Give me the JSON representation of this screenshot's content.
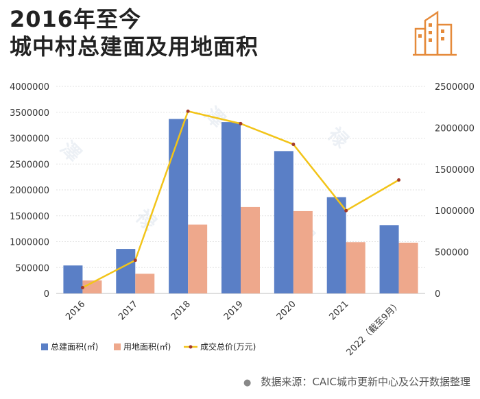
{
  "header": {
    "title_line1": "2016年至今",
    "title_line2": "城中村总建面及用地面积"
  },
  "footer": {
    "source": "数据来源：CAIC城市更新中心及公开数据整理"
  },
  "chart_data": {
    "type": "bar",
    "categories": [
      "2016",
      "2017",
      "2018",
      "2019",
      "2020",
      "2021",
      "2022（截至9月）"
    ],
    "series": [
      {
        "name": "总建面积(㎡)",
        "type": "bar",
        "axis": "left",
        "color": "#5a7fc6",
        "values": [
          540000,
          860000,
          3370000,
          3310000,
          2750000,
          1860000,
          1320000
        ]
      },
      {
        "name": "用地面积(㎡)",
        "type": "bar",
        "axis": "left",
        "color": "#eea88c",
        "values": [
          250000,
          380000,
          1330000,
          1670000,
          1590000,
          990000,
          980000
        ]
      },
      {
        "name": "成交总价(万元)",
        "type": "line",
        "axis": "right",
        "color": "#f2c419",
        "values": [
          70000,
          400000,
          2200000,
          2050000,
          1800000,
          1000000,
          1370000
        ]
      }
    ],
    "y_left": {
      "min": 0,
      "max": 4000000,
      "step": 500000,
      "ticks": [
        "0",
        "500000",
        "1000000",
        "1500000",
        "2000000",
        "2500000",
        "3000000",
        "3500000",
        "4000000"
      ]
    },
    "y_right": {
      "min": 0,
      "max": 2500000,
      "step": 500000,
      "ticks": [
        "0",
        "500000",
        "1000000",
        "1500000",
        "2000000",
        "2500000"
      ]
    },
    "legend_position": "bottom-left",
    "grid": true
  }
}
